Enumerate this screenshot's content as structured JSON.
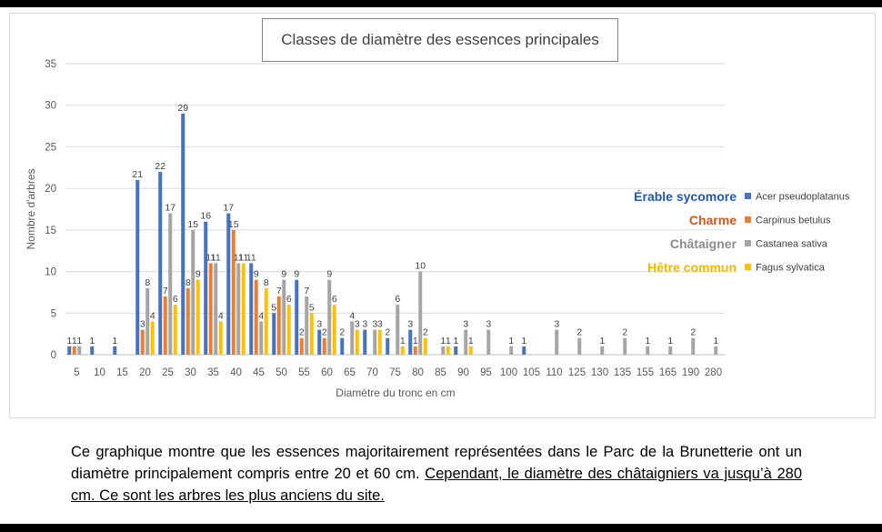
{
  "chart_data": {
    "type": "bar",
    "title": "Classes de diamètre des essences principales",
    "xlabel": "Diamètre du tronc en cm",
    "ylabel": "Nombre d'arbres",
    "ylim": [
      0,
      35
    ],
    "yticks": [
      0,
      5,
      10,
      15,
      20,
      25,
      30,
      35
    ],
    "grid": true,
    "legend_position": "right",
    "categories": [
      "5",
      "10",
      "15",
      "20",
      "25",
      "30",
      "35",
      "40",
      "45",
      "50",
      "55",
      "60",
      "65",
      "70",
      "75",
      "80",
      "85",
      "90",
      "95",
      "100",
      "105",
      "110",
      "125",
      "130",
      "135",
      "155",
      "165",
      "190",
      "280"
    ],
    "series": [
      {
        "name": "Acer pseudoplatanus",
        "common_name": "Érable sycomore",
        "color": "#4472C4",
        "values": [
          1,
          1,
          1,
          21,
          22,
          29,
          16,
          17,
          11,
          5,
          9,
          3,
          2,
          3,
          2,
          3,
          0,
          1,
          0,
          0,
          1,
          0,
          0,
          0,
          0,
          0,
          0,
          0,
          0
        ]
      },
      {
        "name": "Carpinus betulus",
        "common_name": "Charme",
        "color": "#ED7D31",
        "values": [
          1,
          0,
          0,
          3,
          7,
          8,
          11,
          15,
          9,
          7,
          2,
          2,
          0,
          0,
          0,
          1,
          0,
          0,
          0,
          0,
          0,
          0,
          0,
          0,
          0,
          0,
          0,
          0,
          0
        ]
      },
      {
        "name": "Castanea sativa",
        "common_name": "Châtaigner",
        "color": "#A5A5A5",
        "values": [
          1,
          0,
          0,
          8,
          17,
          15,
          11,
          11,
          4,
          9,
          7,
          9,
          4,
          3,
          6,
          10,
          1,
          3,
          3,
          1,
          0,
          3,
          2,
          1,
          2,
          1,
          1,
          2,
          1
        ]
      },
      {
        "name": "Fagus sylvatica",
        "common_name": "Hêtre commun",
        "color": "#FFC000",
        "values": [
          0,
          0,
          0,
          4,
          6,
          9,
          4,
          11,
          8,
          6,
          5,
          6,
          3,
          3,
          1,
          2,
          1,
          1,
          0,
          0,
          0,
          0,
          0,
          0,
          0,
          0,
          0,
          0,
          0
        ]
      }
    ]
  },
  "caption": {
    "part1": "Ce graphique montre que les essences majoritairement représentées dans le Parc de la Brunetterie ont un diamètre principalement compris entre 20 et 60 cm. ",
    "part2": "Cependant, le diamètre des châtaigniers va jusqu’à 280 cm. Ce sont les arbres les plus anciens du site."
  },
  "legend_common_colors": {
    "Érable sycomore": "#2255B8",
    "Charme": "#D8561A",
    "Châtaigner": "#8C8C8C",
    "Hêtre commun": "#F5B800"
  }
}
